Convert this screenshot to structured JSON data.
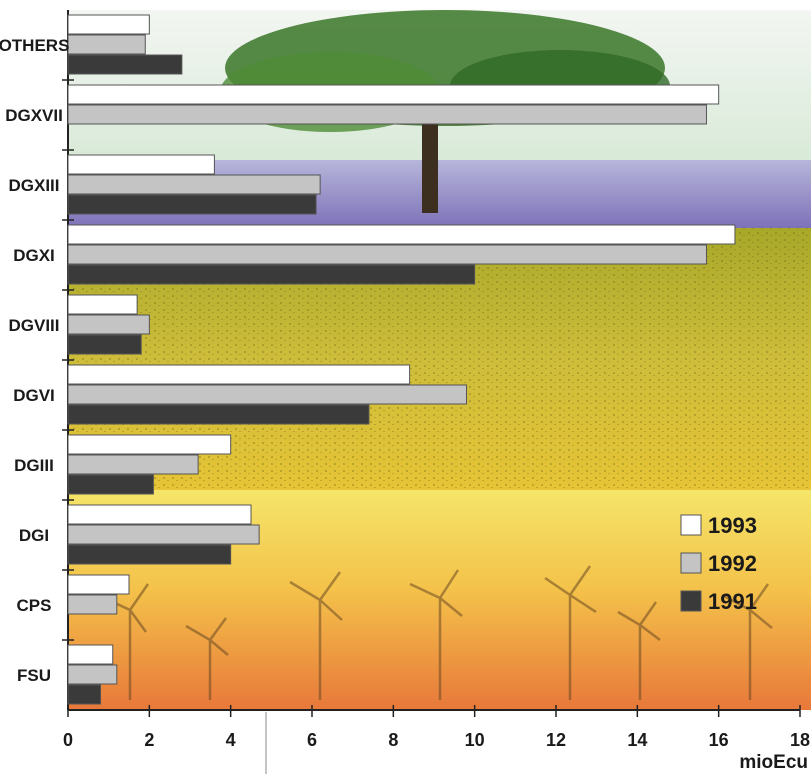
{
  "chart_data": {
    "type": "bar",
    "orientation": "horizontal",
    "categories": [
      "OTHERS",
      "DGXVII",
      "DGXIII",
      "DGXI",
      "DGVIII",
      "DGVI",
      "DGIII",
      "DGI",
      "CPS",
      "FSU"
    ],
    "series": [
      {
        "name": "1993",
        "color": "#ffffff",
        "values": [
          2.0,
          16.0,
          3.6,
          16.4,
          1.7,
          8.4,
          4.0,
          4.5,
          1.5,
          1.1
        ]
      },
      {
        "name": "1992",
        "color": "#c4c4c4",
        "values": [
          1.9,
          15.7,
          6.2,
          15.7,
          2.0,
          9.8,
          3.2,
          4.7,
          1.2,
          1.2
        ]
      },
      {
        "name": "1991",
        "color": "#3a3a3a",
        "values": [
          2.8,
          null,
          6.1,
          10.0,
          1.8,
          7.4,
          2.1,
          4.0,
          null,
          0.8
        ]
      }
    ],
    "xticks": [
      "0",
      "2",
      "4",
      "6",
      "8",
      "10",
      "12",
      "14",
      "16",
      "18"
    ],
    "xlim": [
      0,
      18
    ],
    "xlabel": "mioEcu",
    "legend_position": "bottom-right",
    "grid": false
  },
  "background_theme": [
    "tree-and-sky",
    "lavender-field",
    "rapeseed-field",
    "wind-turbines-at-sunset"
  ]
}
